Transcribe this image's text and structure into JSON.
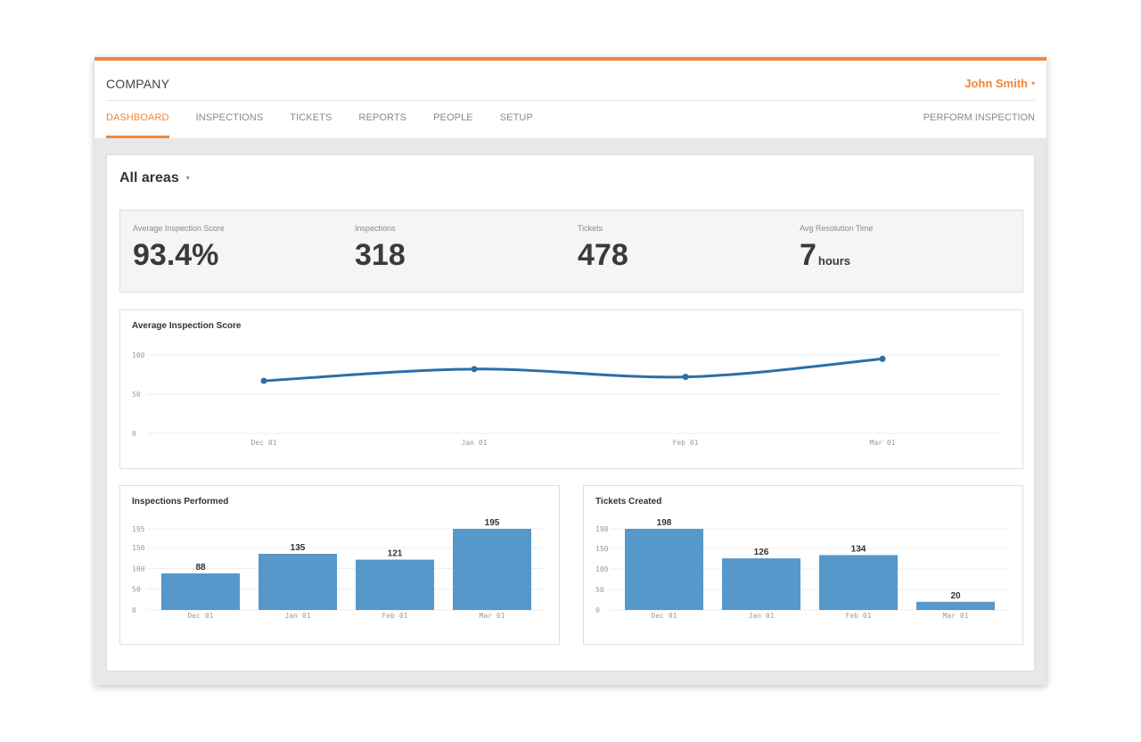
{
  "header": {
    "brand": "COMPANY",
    "user_name": "John Smith",
    "user_caret": "▾"
  },
  "nav": {
    "items": [
      {
        "label": "DASHBOARD",
        "active": true
      },
      {
        "label": "INSPECTIONS",
        "active": false
      },
      {
        "label": "TICKETS",
        "active": false
      },
      {
        "label": "REPORTS",
        "active": false
      },
      {
        "label": "PEOPLE",
        "active": false
      },
      {
        "label": "SETUP",
        "active": false
      }
    ],
    "perform_label": "PERFORM INSPECTION"
  },
  "area_select": {
    "label": "All areas",
    "caret": "▾"
  },
  "stats": {
    "avg_score": {
      "label": "Average Inspection Score",
      "value": "93.4%"
    },
    "inspections": {
      "label": "Inspections",
      "value": "318"
    },
    "tickets": {
      "label": "Tickets",
      "value": "478"
    },
    "resolution": {
      "label": "Avg Resolution Time",
      "value": "7",
      "unit": "hours"
    }
  },
  "colors": {
    "accent": "#f0873a",
    "line": "#2a6fa8",
    "bar": "#5598c9"
  },
  "chart_data": [
    {
      "type": "line",
      "title": "Average Inspection Score",
      "categories": [
        "Dec 01",
        "Jan 01",
        "Feb 01",
        "Mar 01"
      ],
      "values": [
        67,
        82,
        72,
        95
      ],
      "yticks": [
        0,
        50,
        100
      ],
      "ylim": [
        0,
        100
      ],
      "grid": true
    },
    {
      "type": "bar",
      "title": "Inspections Performed",
      "categories": [
        "Dec 01",
        "Jan 01",
        "Feb 01",
        "Mar 01"
      ],
      "values": [
        88,
        135,
        121,
        195
      ],
      "yticks": [
        0,
        50,
        100,
        150,
        195
      ],
      "ylim": [
        0,
        195
      ],
      "grid": true
    },
    {
      "type": "bar",
      "title": "Tickets Created",
      "categories": [
        "Dec 01",
        "Jan 01",
        "Feb 01",
        "Mar 01"
      ],
      "values": [
        198,
        126,
        134,
        20
      ],
      "yticks": [
        0,
        50,
        100,
        150,
        198
      ],
      "ylim": [
        0,
        198
      ],
      "grid": true
    }
  ]
}
